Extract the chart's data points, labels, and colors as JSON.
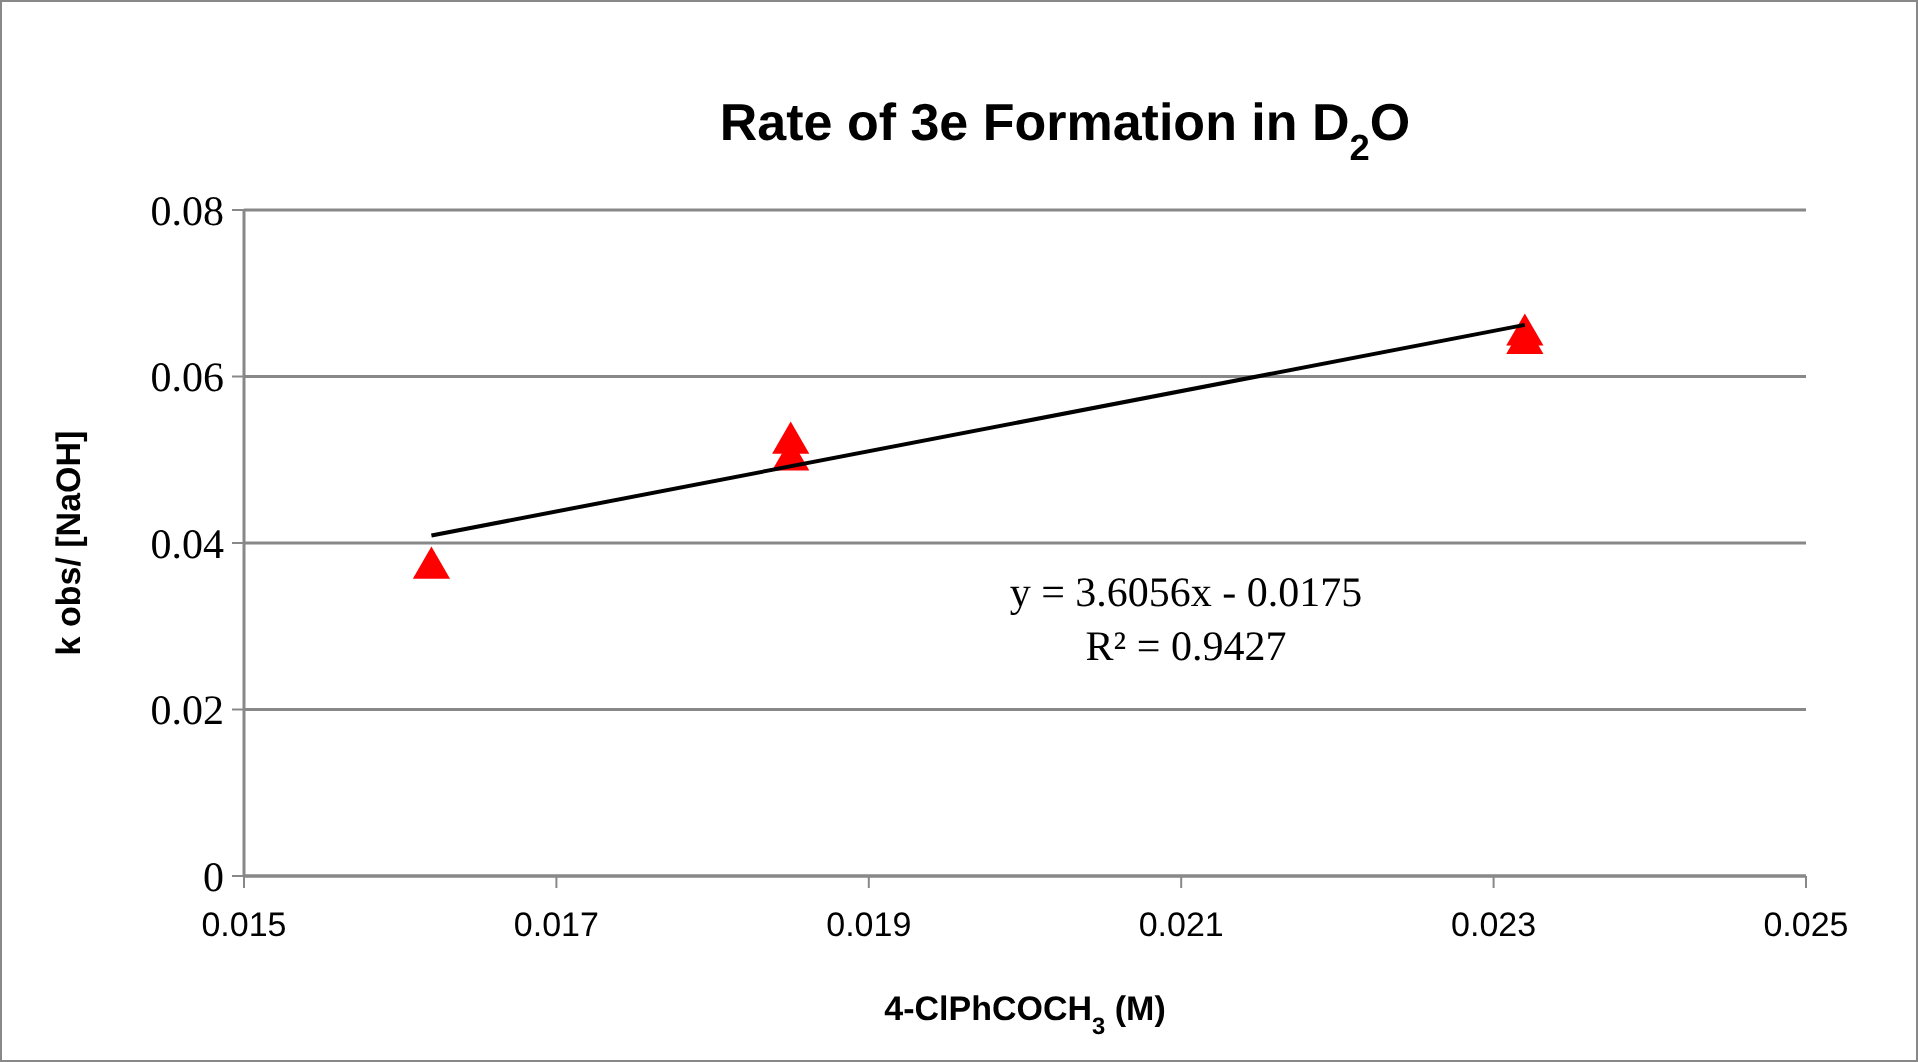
{
  "chart_data": {
    "type": "scatter",
    "title": "Rate of 3e Formation in D$_{2}$O",
    "xlabel": "4-ClPhCOCH$_{3}$ (M)",
    "ylabel": "k obs/ [NaOH]",
    "series": [
      {
        "color": "#ff0000",
        "marker": "triangle",
        "x": [
          0.0162,
          0.0185,
          0.0185,
          0.0232,
          0.0232
        ],
        "values": [
          0.037,
          0.052,
          0.05,
          0.065,
          0.064
        ]
      },
      {
        "type": "line",
        "color": "#000000",
        "marker": "none",
        "x": [
          0.0162,
          0.0232
        ],
        "values": [
          0.0409,
          0.0662
        ]
      }
    ],
    "annotations": [
      "y = 3.6056x - 0.0175",
      "R² = 0.9427"
    ],
    "xlim": [
      0.015,
      0.025
    ],
    "xticks": [
      0.015,
      0.017,
      0.019,
      0.021,
      0.023,
      0.025
    ],
    "ylim": [
      0,
      0.08
    ],
    "yticks": [
      0,
      0.02,
      0.04,
      0.06,
      0.08
    ],
    "grid": "y"
  }
}
